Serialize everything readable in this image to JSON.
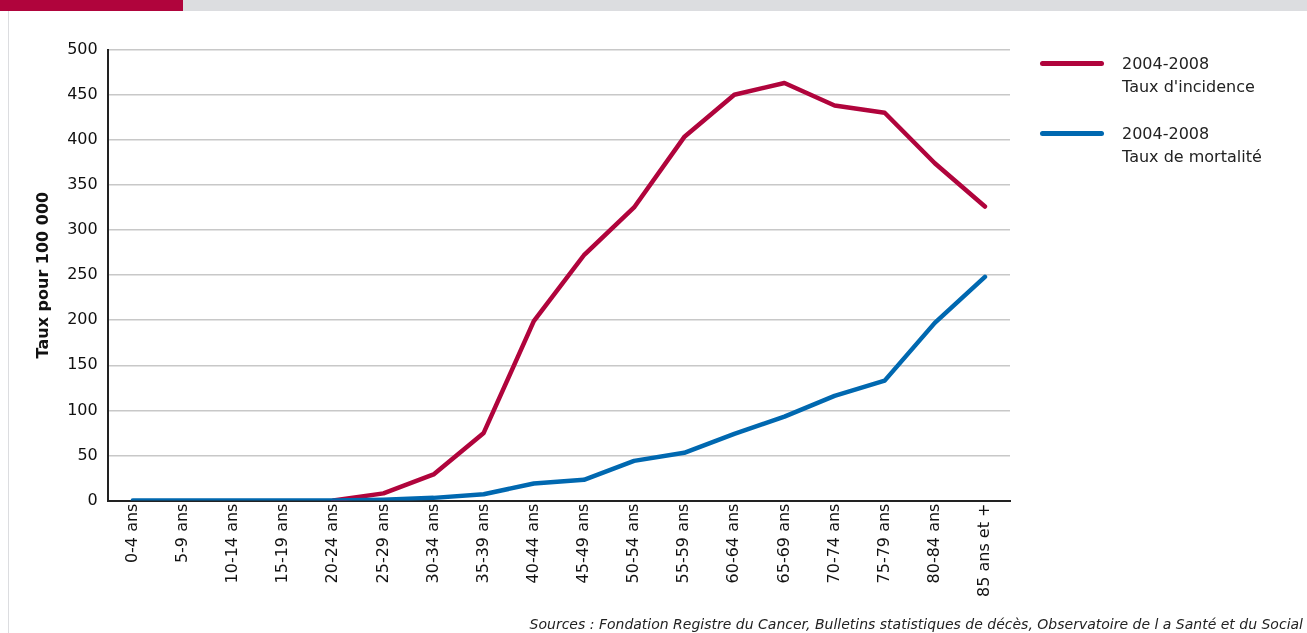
{
  "chart_data": {
    "type": "line",
    "ylabel": "Taux pour 100 000",
    "categories": [
      "0-4 ans",
      "5-9 ans",
      "10-14 ans",
      "15-19 ans",
      "20-24 ans",
      "25-29 ans",
      "30-34 ans",
      "35-39 ans",
      "40-44 ans",
      "45-49 ans",
      "50-54 ans",
      "55-59 ans",
      "60-64 ans",
      "65-69 ans",
      "70-74 ans",
      "75-79 ans",
      "80-84 ans",
      "85 ans et +"
    ],
    "series": [
      {
        "name": "2004-2008\nTaux d'incidence",
        "color": "#b0043c",
        "values": [
          null,
          null,
          null,
          null,
          0,
          8,
          29,
          75,
          199,
          272,
          325,
          403,
          450,
          463,
          438,
          430,
          374,
          326
        ]
      },
      {
        "name": "2004-2008\nTaux de mortalité",
        "color": "#0068b0",
        "values": [
          0,
          0,
          0,
          0,
          0,
          1,
          3,
          7,
          19,
          23,
          44,
          53,
          74,
          93,
          116,
          133,
          197,
          248
        ]
      }
    ],
    "ylim": [
      0,
      500
    ],
    "yticks": [
      0,
      50,
      100,
      150,
      200,
      250,
      300,
      350,
      400,
      450,
      500
    ],
    "grid": "y",
    "legend": "right",
    "marker": "none",
    "line_style": "solid",
    "annotations": [
      "Sources : Fondation Registre du Cancer, Bulletins statistiques de décès, Observatoire de l a Santé et du Social"
    ]
  }
}
